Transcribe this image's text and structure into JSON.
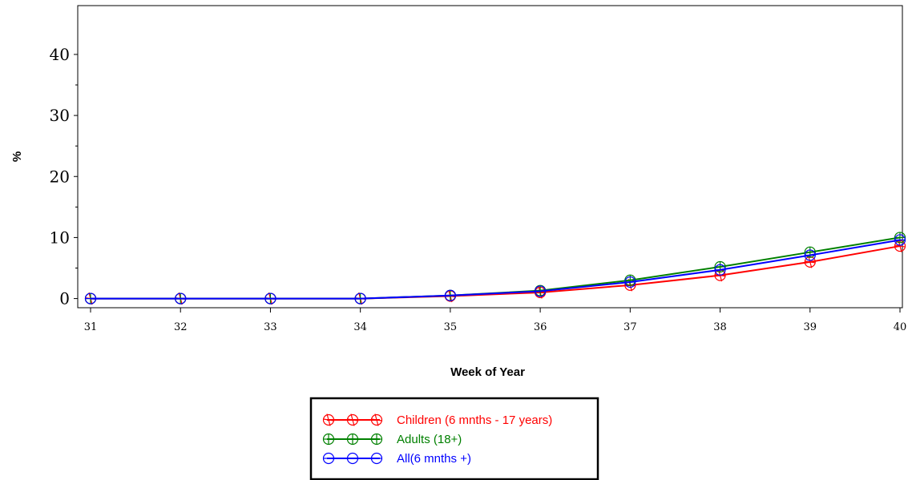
{
  "chart_data": {
    "type": "line",
    "title": "",
    "xlabel": "Week of Year",
    "ylabel": "%",
    "x": [
      31,
      32,
      33,
      34,
      35,
      36,
      37,
      38,
      39,
      40
    ],
    "xlim": [
      31,
      40
    ],
    "ylim": [
      -1.5,
      48
    ],
    "yticks": [
      0,
      10,
      20,
      30,
      40
    ],
    "grid": false,
    "legend_position": "bottom-center",
    "series": [
      {
        "name": "Children (6 mnths - 17 years)",
        "color": "#ff0000",
        "marker": "cross-in-circle-tilted",
        "values": [
          0.0,
          0.0,
          0.0,
          0.0,
          0.4,
          1.0,
          2.2,
          3.8,
          6.0,
          8.6
        ]
      },
      {
        "name": "Adults (18+)",
        "color": "#008000",
        "marker": "plus-in-circle",
        "values": [
          0.0,
          0.0,
          0.0,
          0.0,
          0.5,
          1.3,
          3.0,
          5.2,
          7.6,
          10.0
        ]
      },
      {
        "name": "All(6 mnths +)",
        "color": "#0000ff",
        "marker": "dash-in-circle",
        "values": [
          0.0,
          0.0,
          0.0,
          0.0,
          0.5,
          1.2,
          2.7,
          4.7,
          7.1,
          9.6
        ]
      }
    ]
  }
}
